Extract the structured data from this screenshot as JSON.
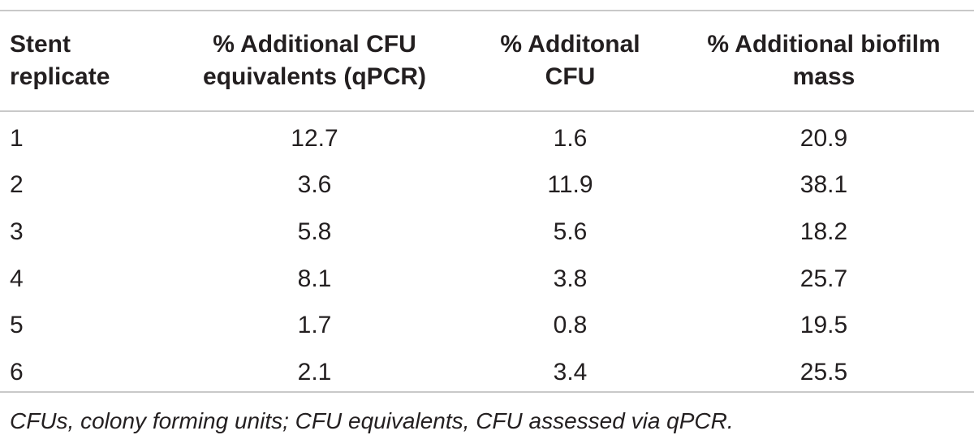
{
  "table": {
    "headers": [
      "Stent replicate",
      "% Additional CFU equivalents (qPCR)",
      "% Additonal CFU",
      "% Additional biofilm mass"
    ],
    "header_lines": [
      [
        "Stent",
        "replicate"
      ],
      [
        "% Additional CFU",
        "equivalents (qPCR)"
      ],
      [
        "% Additonal",
        "CFU"
      ],
      [
        "% Additional biofilm",
        "mass"
      ]
    ],
    "rows": [
      [
        "1",
        "12.7",
        "1.6",
        "20.9"
      ],
      [
        "2",
        "3.6",
        "11.9",
        "38.1"
      ],
      [
        "3",
        "5.8",
        "5.6",
        "18.2"
      ],
      [
        "4",
        "8.1",
        "3.8",
        "25.7"
      ],
      [
        "5",
        "1.7",
        "0.8",
        "19.5"
      ],
      [
        "6",
        "2.1",
        "3.4",
        "25.5"
      ]
    ]
  },
  "footnote": "CFUs, colony forming units; CFU equivalents, CFU assessed via qPCR."
}
